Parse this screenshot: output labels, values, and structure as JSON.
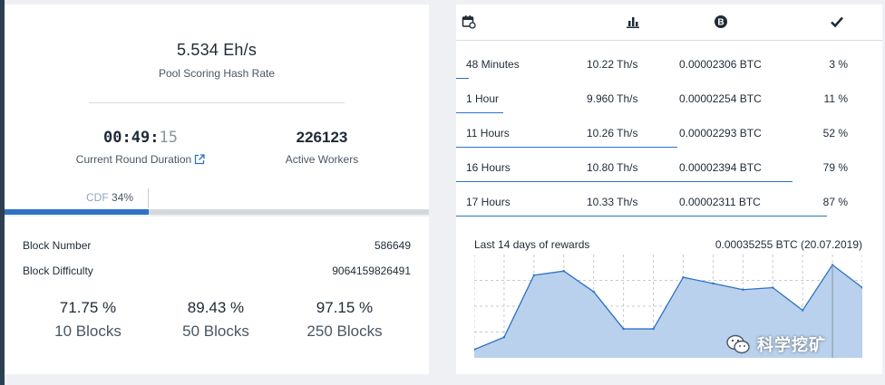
{
  "pool": {
    "hash_rate": "5.534  Eh/s",
    "hash_rate_label": "Pool Scoring Hash Rate",
    "round_duration_main": "00:49:",
    "round_duration_sec": "15",
    "round_duration_label": "Current Round Duration",
    "active_workers": "226123",
    "active_workers_label": "Active Workers",
    "cdf_label": "CDF",
    "cdf_value": "34%",
    "cdf_fraction": 0.34
  },
  "block": {
    "number_label": "Block Number",
    "number_value": "586649",
    "difficulty_label": "Block Difficulty",
    "difficulty_value": "9064159826491",
    "luck": [
      {
        "pct": "71.75 %",
        "blocks": "10 Blocks"
      },
      {
        "pct": "89.43 %",
        "blocks": "50 Blocks"
      },
      {
        "pct": "97.15 %",
        "blocks": "250 Blocks"
      }
    ]
  },
  "table": {
    "header_icons": [
      "calendar-icon",
      "bar-chart-icon",
      "bitcoin-icon",
      "checkmark-icon"
    ],
    "rows": [
      {
        "period": "48 Minutes",
        "hashrate": "10.22  Th/s",
        "reward": "0.00002306 BTC",
        "luck": "3 %",
        "fraction": 0.03
      },
      {
        "period": "1 Hour",
        "hashrate": "9.960  Th/s",
        "reward": "0.00002254 BTC",
        "luck": "11 %",
        "fraction": 0.11
      },
      {
        "period": "11 Hours",
        "hashrate": "10.26  Th/s",
        "reward": "0.00002293 BTC",
        "luck": "52 %",
        "fraction": 0.52
      },
      {
        "period": "16 Hours",
        "hashrate": "10.80  Th/s",
        "reward": "0.00002394 BTC",
        "luck": "79 %",
        "fraction": 0.79
      },
      {
        "period": "17 Hours",
        "hashrate": "10.33  Th/s",
        "reward": "0.00002311 BTC",
        "luck": "87 %",
        "fraction": 0.87
      }
    ]
  },
  "rewards": {
    "title": "Last 14 days of rewards",
    "selected_value": "0.00035255 BTC  (20.07.2019)",
    "accent": "#2d72c4",
    "fill": "#b9d1ec"
  },
  "chart_data": {
    "type": "area",
    "title": "Last 14 days of rewards",
    "x": [
      "day 1",
      "day 2",
      "day 3",
      "day 4",
      "day 5",
      "day 6",
      "day 7",
      "day 8",
      "day 9",
      "day 10",
      "day 11",
      "day 12",
      "day 13",
      "day 14"
    ],
    "values": [
      0.2,
      0.5,
      2.0,
      2.1,
      1.6,
      0.7,
      0.7,
      1.95,
      1.8,
      1.65,
      1.7,
      1.15,
      2.25,
      1.7
    ],
    "ylim": [
      0,
      2.5
    ],
    "grid": true,
    "highlight_index": 12
  },
  "watermark": {
    "text": "科学挖矿"
  }
}
